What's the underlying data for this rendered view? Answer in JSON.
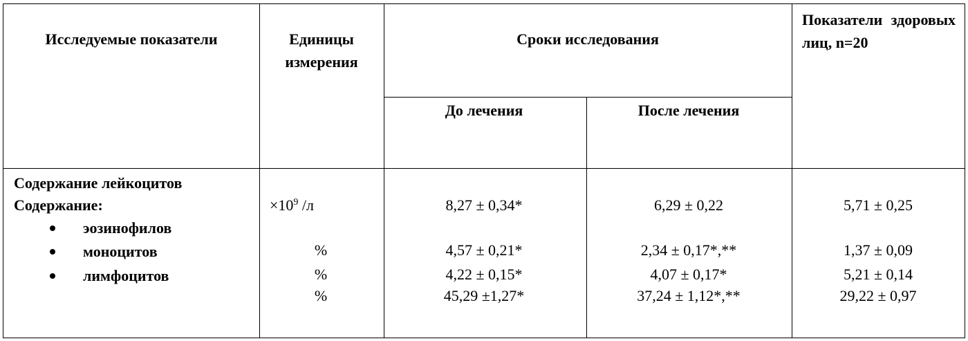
{
  "header": {
    "indicators": "Исследуемые показатели",
    "units": "Единицы измерения",
    "period": "Сроки исследования",
    "period_sub": [
      "До лечения",
      "После лечения"
    ],
    "healthy": "Показатели здоровых лиц, n=20"
  },
  "body": {
    "title": "Содержание лейкоцитов",
    "subtitle": "Содержание:",
    "items": [
      "эозинофилов",
      "моноцитов",
      "лимфоцитов"
    ],
    "units": [
      {
        "base": "×10",
        "sup": "9",
        "unit": "/л"
      },
      "%",
      "%",
      "%"
    ],
    "before": [
      "8,27 ± 0,34*",
      "4,57 ± 0,21*",
      "4,22 ± 0,15*",
      "45,29 ±1,27*"
    ],
    "after": [
      "6,29 ± 0,22",
      "2,34 ± 0,17*,**",
      "4,07 ± 0,17*",
      "37,24 ± 1,12*,**"
    ],
    "healthy": [
      "5,71 ± 0,25",
      "1,37 ± 0,09",
      "5,21 ± 0,14",
      "29,22 ± 0,97"
    ]
  }
}
